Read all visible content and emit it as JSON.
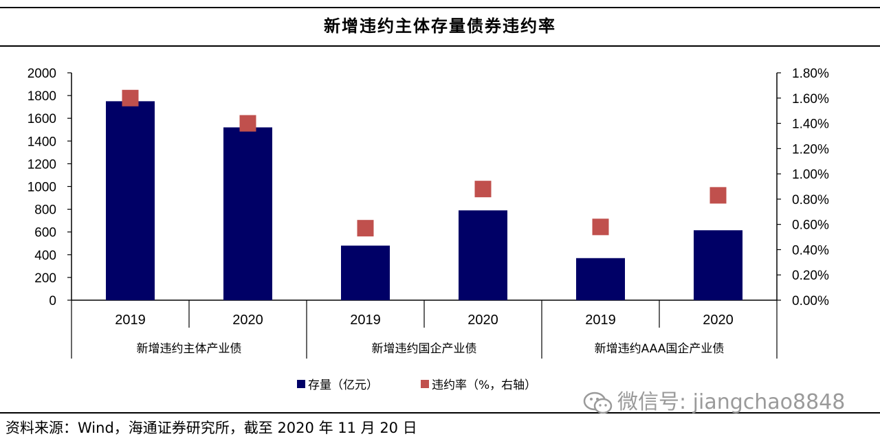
{
  "title": "新增违约主体存量债券违约率",
  "source": "资料来源：Wind，海通证券研究所，截至 2020 年 11 月 20 日",
  "watermark": "微信号: jiangchao8848",
  "colors": {
    "bar": "#000066",
    "marker": "#c0504d"
  },
  "chart_data": {
    "type": "bar",
    "categories": [
      "2019",
      "2020",
      "2019",
      "2020",
      "2019",
      "2020"
    ],
    "groups": [
      "新增违约主体产业债",
      "新增违约国企产业债",
      "新增违约AAA国企产业债"
    ],
    "series": [
      {
        "name": "存量（亿元）",
        "type": "bar",
        "axis": "left",
        "values": [
          1750,
          1520,
          480,
          790,
          370,
          615
        ]
      },
      {
        "name": "违约率（%，右轴）",
        "type": "marker",
        "axis": "right",
        "values": [
          1.6,
          1.4,
          0.57,
          0.88,
          0.58,
          0.83
        ]
      }
    ],
    "yleft": {
      "ylim": [
        0,
        2000
      ],
      "ticks": [
        "0",
        "200",
        "400",
        "600",
        "800",
        "1000",
        "1200",
        "1400",
        "1600",
        "1800",
        "2000"
      ]
    },
    "yright": {
      "ylim": [
        0,
        1.8
      ],
      "ticks": [
        "0.00%",
        "0.20%",
        "0.40%",
        "0.60%",
        "0.80%",
        "1.00%",
        "1.20%",
        "1.40%",
        "1.60%",
        "1.80%"
      ]
    },
    "legend": "bottom",
    "grid": false
  }
}
